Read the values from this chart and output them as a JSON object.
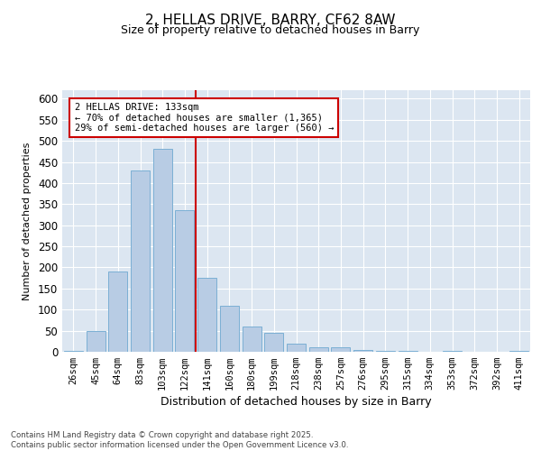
{
  "title_line1": "2, HELLAS DRIVE, BARRY, CF62 8AW",
  "title_line2": "Size of property relative to detached houses in Barry",
  "xlabel": "Distribution of detached houses by size in Barry",
  "ylabel": "Number of detached properties",
  "bar_color": "#b8cce4",
  "bar_edge_color": "#7bafd4",
  "categories": [
    "26sqm",
    "45sqm",
    "64sqm",
    "83sqm",
    "103sqm",
    "122sqm",
    "141sqm",
    "160sqm",
    "180sqm",
    "199sqm",
    "218sqm",
    "238sqm",
    "257sqm",
    "276sqm",
    "295sqm",
    "315sqm",
    "334sqm",
    "353sqm",
    "372sqm",
    "392sqm",
    "411sqm"
  ],
  "values": [
    2,
    50,
    190,
    430,
    480,
    335,
    175,
    110,
    60,
    45,
    20,
    10,
    10,
    5,
    3,
    2,
    1,
    2,
    1,
    1,
    2
  ],
  "ylim": [
    0,
    620
  ],
  "yticks": [
    0,
    50,
    100,
    150,
    200,
    250,
    300,
    350,
    400,
    450,
    500,
    550,
    600
  ],
  "vline_x": 5.5,
  "vline_color": "#cc0000",
  "annotation_text": "2 HELLAS DRIVE: 133sqm\n← 70% of detached houses are smaller (1,365)\n29% of semi-detached houses are larger (560) →",
  "annotation_box_color": "#ffffff",
  "annotation_box_edge": "#cc0000",
  "footnote": "Contains HM Land Registry data © Crown copyright and database right 2025.\nContains public sector information licensed under the Open Government Licence v3.0.",
  "background_color": "#dce6f1",
  "grid_color": "#ffffff",
  "fig_background": "#ffffff"
}
